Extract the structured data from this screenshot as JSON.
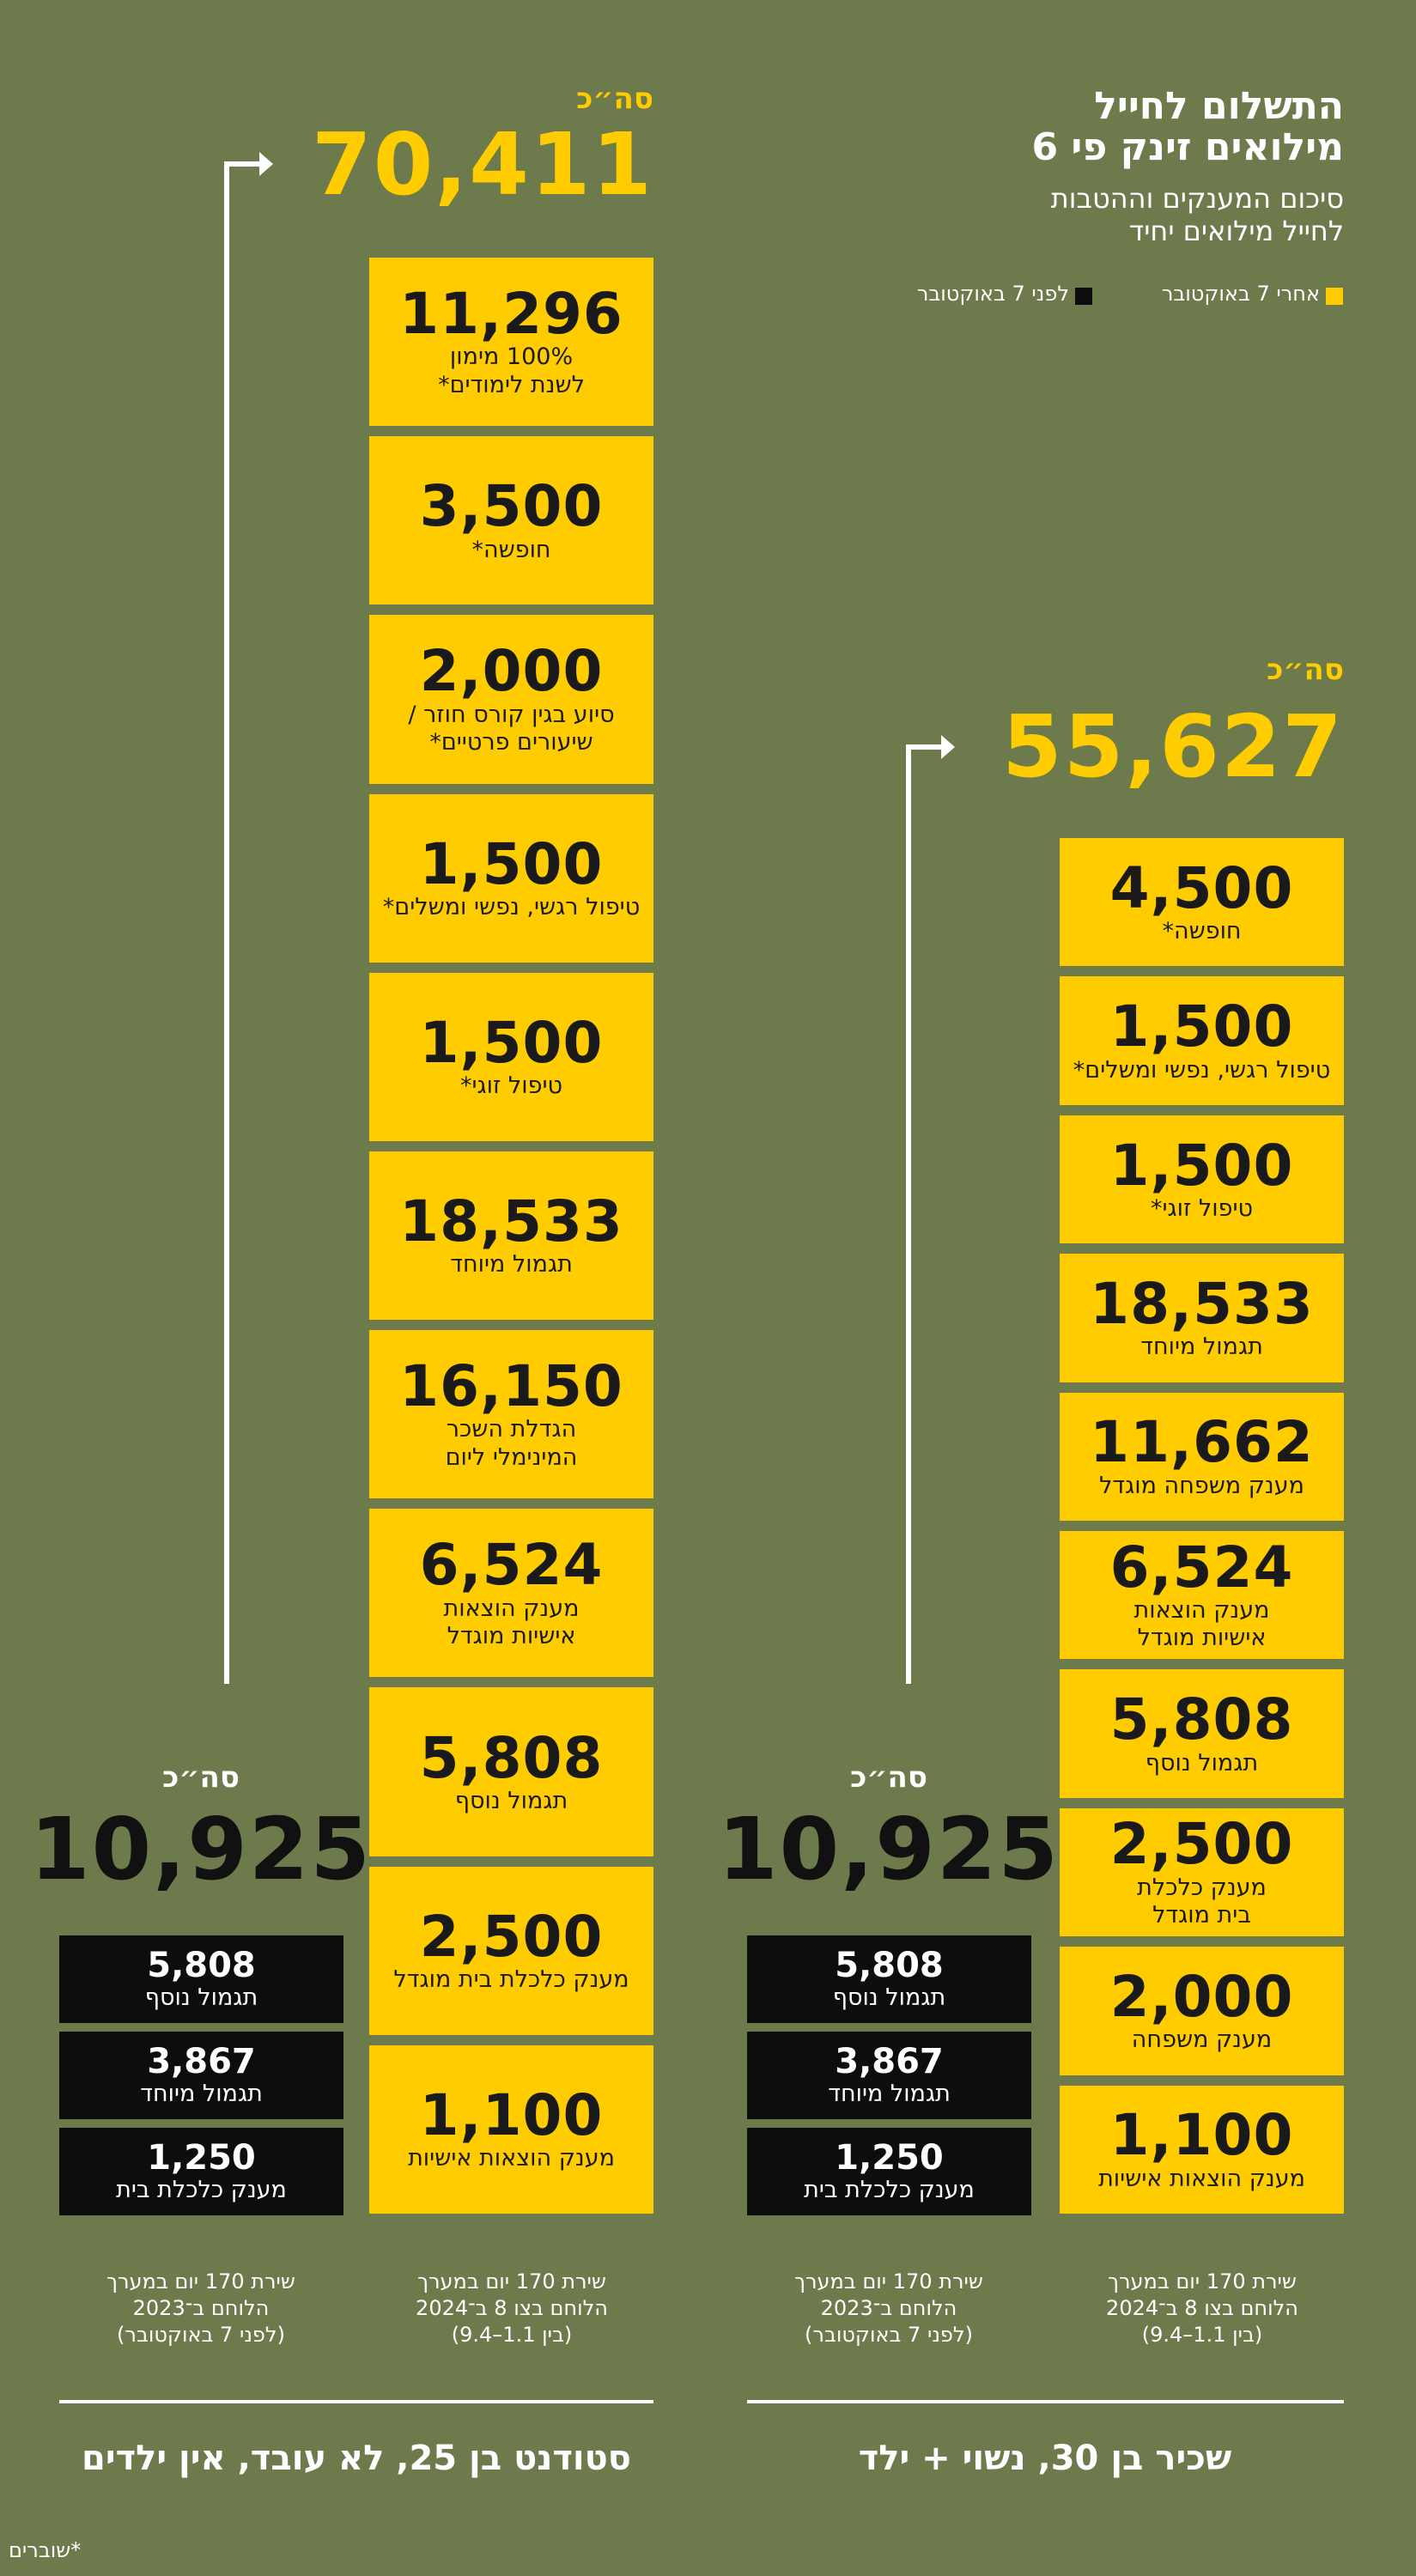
{
  "header": {
    "title": [
      "התשלום לחייל",
      "מילואים זינק פי 6"
    ],
    "subtitle": [
      "סיכום המענקים וההטבות",
      "לחייל מילואים יחיד"
    ]
  },
  "legend": {
    "after": "אחרי 7 באוקטובר",
    "before": "לפני 7 באוקטובר"
  },
  "panels": [
    {
      "name": "שכיר בן 30, נשוי + ילד",
      "after": {
        "total_label": "סה״כ",
        "total": "55,627",
        "caption": [
          "שירת 170 יום במערך",
          "הלוחם בצו 8 ב־2024",
          "(בין 1.1–9.4)"
        ],
        "items": [
          {
            "value": "4,500",
            "label": [
              "חופשה*"
            ]
          },
          {
            "value": "1,500",
            "label": [
              "טיפול רגשי, נפשי ומשלים*"
            ]
          },
          {
            "value": "1,500",
            "label": [
              "טיפול זוגי*"
            ]
          },
          {
            "value": "18,533",
            "label": [
              "תגמול מיוחד"
            ]
          },
          {
            "value": "11,662",
            "label": [
              "מענק משפחה מוגדל"
            ]
          },
          {
            "value": "6,524",
            "label": [
              "מענק הוצאות",
              "אישיות מוגדל"
            ]
          },
          {
            "value": "5,808",
            "label": [
              "תגמול נוסף"
            ]
          },
          {
            "value": "2,500",
            "label": [
              "מענק כלכלת",
              "בית מוגדל"
            ]
          },
          {
            "value": "2,000",
            "label": [
              "מענק משפחה"
            ]
          },
          {
            "value": "1,100",
            "label": [
              "מענק הוצאות אישיות"
            ]
          }
        ]
      },
      "before": {
        "total_label": "סה״כ",
        "total": "10,925",
        "caption": [
          "שירת 170 יום במערך",
          "הלוחם ב־2023",
          "(לפני 7 באוקטובר)"
        ],
        "items": [
          {
            "value": "5,808",
            "label": [
              "תגמול נוסף"
            ]
          },
          {
            "value": "3,867",
            "label": [
              "תגמול מיוחד"
            ]
          },
          {
            "value": "1,250",
            "label": [
              "מענק כלכלת בית"
            ]
          }
        ]
      }
    },
    {
      "name": "סטודנט בן 25, לא עובד, אין ילדים",
      "after": {
        "total_label": "סה״כ",
        "total": "70,411",
        "caption": [
          "שירת 170 יום במערך",
          "הלוחם בצו 8 ב־2024",
          "(בין 1.1–9.4)"
        ],
        "items": [
          {
            "value": "11,296",
            "label": [
              "100% מימון",
              "לשנת לימודים*"
            ]
          },
          {
            "value": "3,500",
            "label": [
              "חופשה*"
            ]
          },
          {
            "value": "2,000",
            "label": [
              "סיוע בגין קורס חוזר /",
              "שיעורים פרטיים*"
            ]
          },
          {
            "value": "1,500",
            "label": [
              "טיפול רגשי, נפשי ומשלים*"
            ]
          },
          {
            "value": "1,500",
            "label": [
              "טיפול זוגי*"
            ]
          },
          {
            "value": "18,533",
            "label": [
              "תגמול מיוחד"
            ]
          },
          {
            "value": "16,150",
            "label": [
              "הגדלת השכר",
              "המינימלי ליום"
            ]
          },
          {
            "value": "6,524",
            "label": [
              "מענק הוצאות",
              "אישיות מוגדל"
            ]
          },
          {
            "value": "5,808",
            "label": [
              "תגמול נוסף"
            ]
          },
          {
            "value": "2,500",
            "label": [
              "מענק כלכלת בית מוגדל"
            ]
          },
          {
            "value": "1,100",
            "label": [
              "מענק הוצאות אישיות"
            ]
          }
        ]
      },
      "before": {
        "total_label": "סה״כ",
        "total": "10,925",
        "caption": [
          "שירת 170 יום במערך",
          "הלוחם ב־2023",
          "(לפני 7 באוקטובר)"
        ],
        "items": [
          {
            "value": "5,808",
            "label": [
              "תגמול נוסף"
            ]
          },
          {
            "value": "3,867",
            "label": [
              "תגמול מיוחד"
            ]
          },
          {
            "value": "1,250",
            "label": [
              "מענק כלכלת בית"
            ]
          }
        ]
      }
    }
  ],
  "footnote": "*שוברים"
}
